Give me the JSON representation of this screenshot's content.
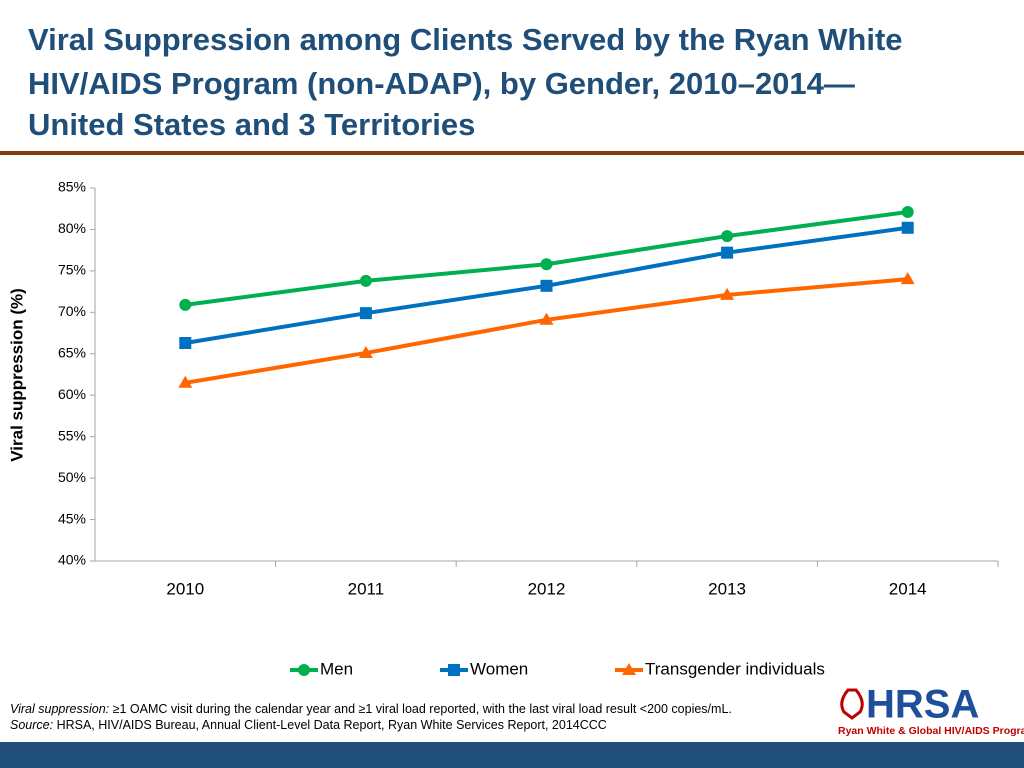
{
  "chart_data": {
    "type": "line",
    "title": [
      "Viral Suppression among Clients Served by the Ryan White",
      "HIV/AIDS Program (non-ADAP), by Gender, 2010–2014—",
      "United States and 3 Territories"
    ],
    "y_label": "Viral suppression (%)",
    "categories": [
      "2010",
      "2011",
      "2012",
      "2013",
      "2014"
    ],
    "series": [
      {
        "name": "Men",
        "color": "#00b050",
        "marker": "circle",
        "values": [
          70.9,
          73.8,
          75.8,
          79.2,
          82.1
        ]
      },
      {
        "name": "Women",
        "color": "#0070c0",
        "marker": "square",
        "values": [
          66.3,
          69.9,
          73.2,
          77.2,
          80.2
        ]
      },
      {
        "name": "Transgender individuals",
        "color": "#ff6600",
        "marker": "triangle",
        "values": [
          61.5,
          65.1,
          69.1,
          72.1,
          74.0
        ]
      }
    ],
    "ylim": [
      40,
      85
    ],
    "yticks": [
      {
        "value": 40,
        "label": "40%"
      },
      {
        "value": 45,
        "label": "45%"
      },
      {
        "value": 50,
        "label": "50%"
      },
      {
        "value": 55,
        "label": "55%"
      },
      {
        "value": 60,
        "label": "60%"
      },
      {
        "value": 65,
        "label": "65%"
      },
      {
        "value": 70,
        "label": "70%"
      },
      {
        "value": 75,
        "label": "75%"
      },
      {
        "value": 80,
        "label": "80%"
      },
      {
        "value": 85,
        "label": "85%"
      }
    ],
    "grid": false,
    "legend": "bottom",
    "footnote": {
      "definition_label": "Viral suppression:",
      "definition": "≥1 OAMC visit during the calendar year and ≥1 viral load reported, with the last viral load result <200 copies/mL.",
      "source_label": "Source:",
      "source": "HRSA, HIV/AIDS Bureau, Annual Client-Level Data Report, Ryan White Services Report, 2014CCC"
    },
    "logo": {
      "name": "HRSA",
      "subtitle": "Ryan White & Global HIV/AIDS Programs"
    }
  }
}
